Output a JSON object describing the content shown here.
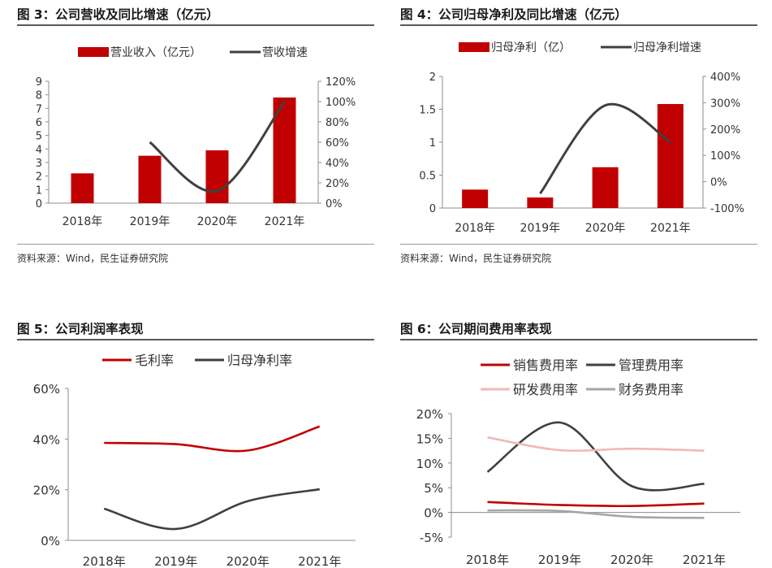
{
  "colors": {
    "red": "#c00000",
    "dark": "#404040",
    "pink": "#f0b8b8",
    "grey": "#a6a6a6",
    "axis": "#8c8c8c"
  },
  "panels": [
    {
      "title": "图 3：公司营收及同比增速（亿元）",
      "source": "资料来源：Wind，民生证券研究院"
    },
    {
      "title": "图 4：公司归母净利及同比增速（亿元）",
      "source": "资料来源：Wind，民生证券研究院"
    },
    {
      "title": "图 5：公司利润率表现"
    },
    {
      "title": "图 6：公司期间费用率表现"
    }
  ],
  "chart_data": [
    {
      "type": "bar+line",
      "categories": [
        "2018年",
        "2019年",
        "2020年",
        "2021年"
      ],
      "series": [
        {
          "name": "营业收入（亿元）",
          "kind": "bar",
          "axis": "left",
          "values": [
            2.2,
            3.5,
            3.9,
            7.8
          ]
        },
        {
          "name": "营收增速",
          "kind": "line",
          "axis": "right",
          "values": [
            null,
            60,
            12,
            100
          ]
        }
      ],
      "yticks_left": [
        "0",
        "1",
        "2",
        "3",
        "4",
        "5",
        "6",
        "7",
        "8",
        "9"
      ],
      "yticks_right": [
        "0%",
        "20%",
        "40%",
        "60%",
        "80%",
        "100%",
        "120%"
      ],
      "ylim_left": [
        0,
        9
      ],
      "ylim_right": [
        0,
        120
      ]
    },
    {
      "type": "bar+line",
      "categories": [
        "2018年",
        "2019年",
        "2020年",
        "2021年"
      ],
      "series": [
        {
          "name": "归母净利（亿）",
          "kind": "bar",
          "axis": "left",
          "values": [
            0.28,
            0.16,
            0.62,
            1.58
          ]
        },
        {
          "name": "归母净利增速",
          "kind": "line",
          "axis": "right",
          "values": [
            null,
            -45,
            290,
            150
          ]
        }
      ],
      "yticks_left": [
        "0",
        "0.5",
        "1",
        "1.5",
        "2"
      ],
      "yticks_right": [
        "-100%",
        "0%",
        "100%",
        "200%",
        "300%",
        "400%"
      ],
      "ylim_left": [
        0,
        2
      ],
      "ylim_right": [
        -100,
        400
      ]
    },
    {
      "type": "line",
      "categories": [
        "2018年",
        "2019年",
        "2020年",
        "2021年"
      ],
      "series": [
        {
          "name": "毛利率",
          "values": [
            38.5,
            38,
            35.5,
            45
          ]
        },
        {
          "name": "归母净利率",
          "values": [
            12.5,
            4.5,
            15.5,
            20.2
          ]
        }
      ],
      "yticks": [
        "0%",
        "20%",
        "40%",
        "60%"
      ],
      "ylim": [
        0,
        60
      ]
    },
    {
      "type": "line",
      "categories": [
        "2018年",
        "2019年",
        "2020年",
        "2021年"
      ],
      "series": [
        {
          "name": "销售费用率",
          "values": [
            2.1,
            1.5,
            1.3,
            1.8
          ]
        },
        {
          "name": "管理费用率",
          "values": [
            8.2,
            18.2,
            5.3,
            5.8
          ]
        },
        {
          "name": "研发费用率",
          "values": [
            15.2,
            12.6,
            12.9,
            12.5
          ]
        },
        {
          "name": "财务费用率",
          "values": [
            0.4,
            0.3,
            -0.9,
            -1.1
          ]
        }
      ],
      "yticks": [
        "-5%",
        "0%",
        "5%",
        "10%",
        "15%",
        "20%"
      ],
      "ylim": [
        -5,
        20
      ]
    }
  ]
}
